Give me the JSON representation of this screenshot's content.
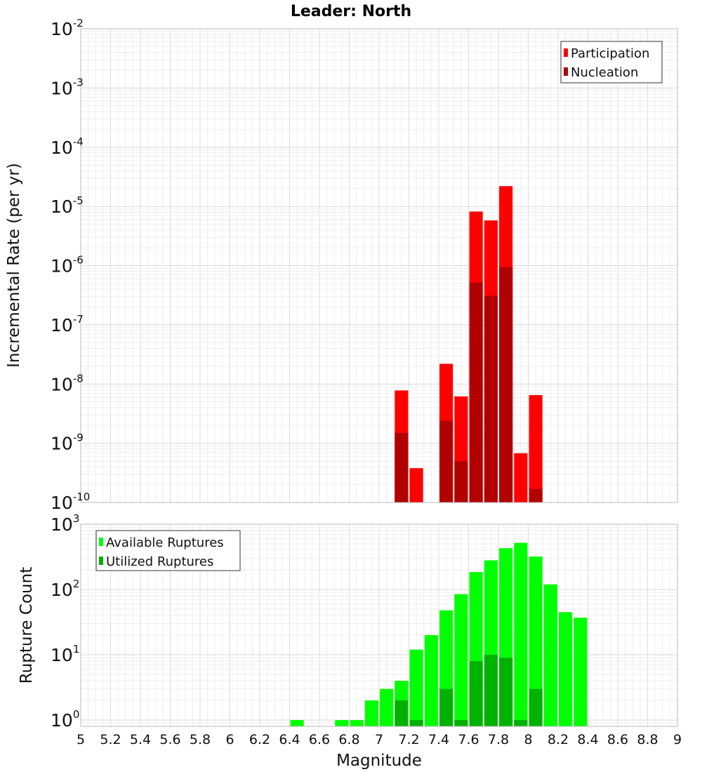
{
  "chart_data": [
    {
      "type": "bar",
      "title": "Leader: North",
      "xlabel": "",
      "ylabel": "Incremental Rate (per yr)",
      "yscale": "log",
      "xlim": [
        5,
        9
      ],
      "ylim": [
        1e-10,
        0.01
      ],
      "grid": true,
      "legend_position": "top-right",
      "y_tick_labels": [
        {
          "base": "10",
          "exp": "-2"
        },
        {
          "base": "10",
          "exp": "-3"
        },
        {
          "base": "10",
          "exp": "-4"
        },
        {
          "base": "10",
          "exp": "-5"
        },
        {
          "base": "10",
          "exp": "-6"
        },
        {
          "base": "10",
          "exp": "-7"
        },
        {
          "base": "10",
          "exp": "-8"
        },
        {
          "base": "10",
          "exp": "-9"
        },
        {
          "base": "10",
          "exp": "-10"
        }
      ],
      "y_tick_values": [
        0.01,
        0.001,
        0.0001,
        1e-05,
        1e-06,
        1e-07,
        1e-08,
        1e-09,
        1e-10
      ],
      "series": [
        {
          "name": "Participation",
          "color": "#ff0000",
          "points": [
            [
              7.15,
              7.8e-09
            ],
            [
              7.25,
              3.8e-10
            ],
            [
              7.45,
              2.2e-08
            ],
            [
              7.55,
              6.2e-09
            ],
            [
              7.65,
              8.2e-06
            ],
            [
              7.75,
              5.8e-06
            ],
            [
              7.85,
              2.2e-05
            ],
            [
              7.95,
              6.8e-10
            ],
            [
              8.05,
              6.5e-09
            ]
          ]
        },
        {
          "name": "Nucleation",
          "color": "#b20000",
          "points": [
            [
              7.15,
              1.5e-09
            ],
            [
              7.45,
              2.4e-09
            ],
            [
              7.55,
              5e-10
            ],
            [
              7.65,
              5.2e-07
            ],
            [
              7.75,
              3.1e-07
            ],
            [
              7.85,
              9.5e-07
            ],
            [
              8.05,
              1.7e-10
            ]
          ]
        }
      ]
    },
    {
      "type": "bar",
      "title": "",
      "xlabel": "Magnitude",
      "ylabel": "Rupture Count",
      "yscale": "log",
      "xlim": [
        5,
        9
      ],
      "ylim": [
        0.8,
        1000
      ],
      "grid": true,
      "legend_position": "top-left",
      "x_tick_labels": [
        "5",
        "5.2",
        "5.4",
        "5.6",
        "5.8",
        "6",
        "6.2",
        "6.4",
        "6.6",
        "6.8",
        "7",
        "7.2",
        "7.4",
        "7.6",
        "7.8",
        "8",
        "8.2",
        "8.4",
        "8.6",
        "8.8",
        "9"
      ],
      "x_tick_values": [
        5,
        5.2,
        5.4,
        5.6,
        5.8,
        6,
        6.2,
        6.4,
        6.6,
        6.8,
        7,
        7.2,
        7.4,
        7.6,
        7.8,
        8,
        8.2,
        8.4,
        8.6,
        8.8,
        9
      ],
      "y_tick_labels": [
        {
          "base": "10",
          "exp": "3"
        },
        {
          "base": "10",
          "exp": "2"
        },
        {
          "base": "10",
          "exp": "1"
        },
        {
          "base": "10",
          "exp": "0"
        }
      ],
      "y_tick_values": [
        1000,
        100,
        10,
        1
      ],
      "series": [
        {
          "name": "Available Ruptures",
          "color": "#00ff00",
          "points": [
            [
              6.45,
              1
            ],
            [
              6.75,
              1
            ],
            [
              6.85,
              1
            ],
            [
              6.95,
              2
            ],
            [
              7.05,
              3
            ],
            [
              7.15,
              4
            ],
            [
              7.25,
              12
            ],
            [
              7.35,
              20
            ],
            [
              7.45,
              48
            ],
            [
              7.55,
              85
            ],
            [
              7.65,
              185
            ],
            [
              7.75,
              280
            ],
            [
              7.85,
              430
            ],
            [
              7.95,
              520
            ],
            [
              8.05,
              320
            ],
            [
              8.15,
              120
            ],
            [
              8.25,
              45
            ],
            [
              8.35,
              37
            ]
          ]
        },
        {
          "name": "Utilized Ruptures",
          "color": "#00b200",
          "points": [
            [
              7.15,
              2
            ],
            [
              7.25,
              1
            ],
            [
              7.45,
              3
            ],
            [
              7.55,
              1
            ],
            [
              7.65,
              8
            ],
            [
              7.75,
              10
            ],
            [
              7.85,
              9
            ],
            [
              7.95,
              1
            ],
            [
              8.05,
              3
            ]
          ]
        }
      ]
    }
  ]
}
